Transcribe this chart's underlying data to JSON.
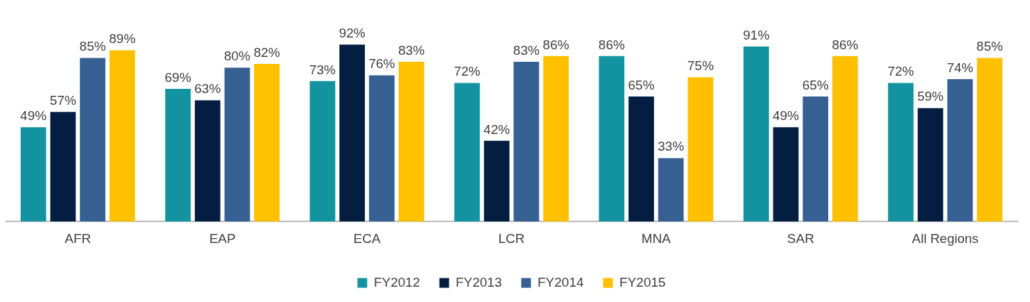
{
  "chart_data": {
    "type": "bar",
    "categories": [
      "AFR",
      "EAP",
      "ECA",
      "LCR",
      "MNA",
      "SAR",
      "All Regions"
    ],
    "series": [
      {
        "name": "FY2012",
        "color": "#1393a0",
        "values": [
          49,
          69,
          73,
          72,
          86,
          91,
          72
        ],
        "value_labels": [
          "49%",
          "69%",
          "73%",
          "72%",
          "86%",
          "91%",
          "72%"
        ]
      },
      {
        "name": "FY2013",
        "color": "#041e42",
        "values": [
          57,
          63,
          92,
          42,
          65,
          49,
          59
        ],
        "value_labels": [
          "57%",
          "63%",
          "92%",
          "42%",
          "65%",
          "49%",
          "59%"
        ]
      },
      {
        "name": "FY2014",
        "color": "#376092",
        "values": [
          85,
          80,
          76,
          83,
          33,
          65,
          74
        ],
        "value_labels": [
          "85%",
          "80%",
          "76%",
          "83%",
          "33%",
          "65%",
          "74%"
        ]
      },
      {
        "name": "FY2015",
        "color": "#ffc000",
        "values": [
          89,
          82,
          83,
          86,
          75,
          86,
          85
        ],
        "value_labels": [
          "89%",
          "82%",
          "83%",
          "86%",
          "75%",
          "86%",
          "85%"
        ]
      }
    ],
    "tick_labels": "x",
    "grid": false,
    "legend": "bottom"
  }
}
